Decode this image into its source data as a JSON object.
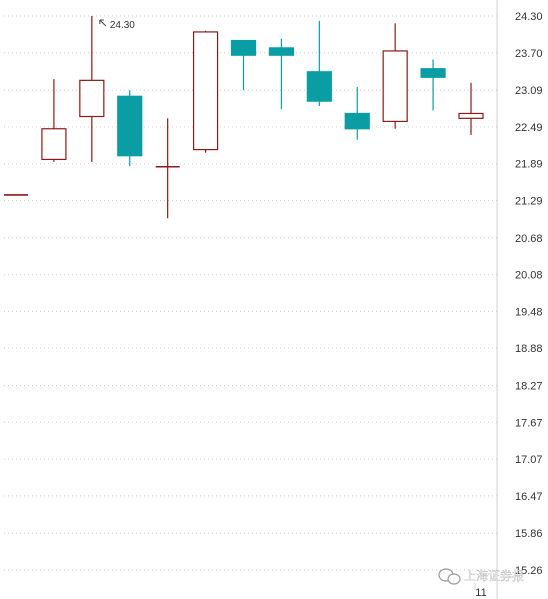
{
  "chart_data": {
    "type": "candlestick",
    "y_axis": {
      "position": "right",
      "ticks": [
        "24.30",
        "23.70",
        "23.09",
        "22.49",
        "21.89",
        "21.29",
        "20.68",
        "20.08",
        "19.48",
        "18.88",
        "18.27",
        "17.67",
        "17.07",
        "16.47",
        "15.86",
        "15.26"
      ],
      "ylim": [
        15.26,
        24.3
      ],
      "grid": true
    },
    "x_axis": {
      "tick_labels": [
        "11"
      ]
    },
    "up_color": "#8b1a1a",
    "down_color": "#0a9ea4",
    "candles": [
      {
        "open": 21.38,
        "high": 21.38,
        "low": 21.38,
        "close": 21.38,
        "direction": "up"
      },
      {
        "open": 21.96,
        "high": 23.27,
        "low": 21.92,
        "close": 22.46,
        "direction": "up"
      },
      {
        "open": 22.66,
        "high": 24.3,
        "low": 21.92,
        "close": 23.25,
        "direction": "up"
      },
      {
        "open": 22.99,
        "high": 23.09,
        "low": 21.85,
        "close": 22.02,
        "direction": "down"
      },
      {
        "open": 21.84,
        "high": 22.63,
        "low": 21.0,
        "close": 21.84,
        "direction": "up"
      },
      {
        "open": 22.12,
        "high": 24.06,
        "low": 22.07,
        "close": 24.04,
        "direction": "up"
      },
      {
        "open": 23.9,
        "high": 23.9,
        "low": 23.09,
        "close": 23.66,
        "direction": "down"
      },
      {
        "open": 23.78,
        "high": 23.93,
        "low": 22.78,
        "close": 23.66,
        "direction": "down"
      },
      {
        "open": 23.39,
        "high": 24.22,
        "low": 22.83,
        "close": 22.91,
        "direction": "down"
      },
      {
        "open": 22.71,
        "high": 23.14,
        "low": 22.28,
        "close": 22.46,
        "direction": "down"
      },
      {
        "open": 22.58,
        "high": 24.18,
        "low": 22.46,
        "close": 23.73,
        "direction": "up"
      },
      {
        "open": 23.44,
        "high": 23.59,
        "low": 22.76,
        "close": 23.3,
        "direction": "down"
      },
      {
        "open": 22.63,
        "high": 23.21,
        "low": 22.36,
        "close": 22.71,
        "direction": "up"
      }
    ],
    "annotations": [
      {
        "label": "24.30",
        "candle_index": 2,
        "value": 24.3
      }
    ]
  },
  "watermark": {
    "text": "上海证券报",
    "icon": "wechat-icon"
  }
}
